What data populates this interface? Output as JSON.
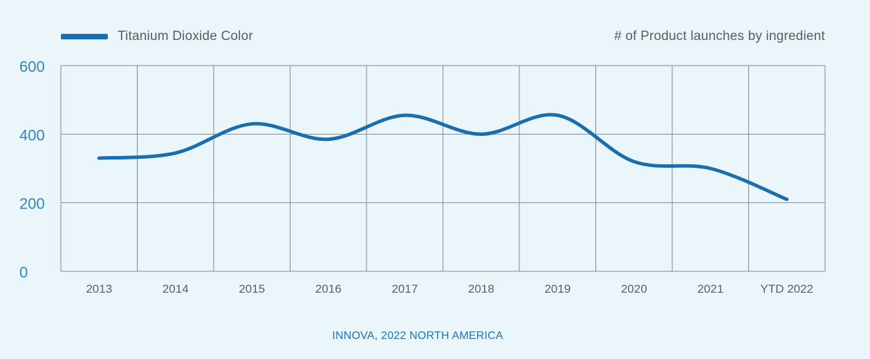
{
  "colors": {
    "line": "#1a6eaf",
    "grid": "#7f8a90",
    "axis_y_labels": "#2f86c6",
    "axis_x_labels": "#5a6066",
    "text": "#555c62",
    "source": "#1f73b7",
    "background": "#eaf6f9"
  },
  "legend": {
    "label": "Titanium Dioxide Color",
    "swatch_icon": "line-swatch"
  },
  "source_label": "INNOVA, 2022 NORTH AMERICA",
  "chart_data": {
    "type": "line",
    "title": "# of Product launches by ingredient",
    "xlabel": "",
    "ylabel": "",
    "categories": [
      "2013",
      "2014",
      "2015",
      "2016",
      "2017",
      "2018",
      "2019",
      "2020",
      "2021",
      "YTD 2022"
    ],
    "series": [
      {
        "name": "Titanium Dioxide Color",
        "values": [
          330,
          345,
          430,
          385,
          455,
          400,
          455,
          320,
          300,
          210
        ]
      }
    ],
    "ylim": [
      0,
      600
    ],
    "yticks": [
      0,
      200,
      400,
      600
    ],
    "grid": true,
    "legend_position": "top-left"
  }
}
